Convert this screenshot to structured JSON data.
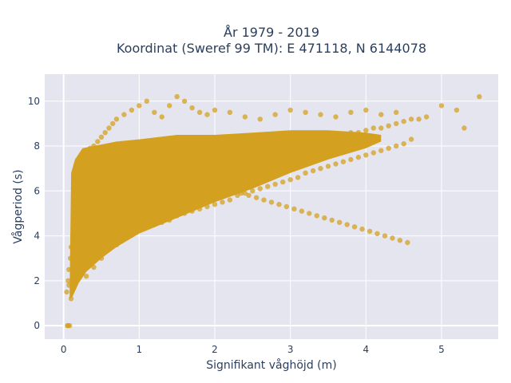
{
  "chart_data": {
    "type": "scatter",
    "title_lines": [
      "År 1979 - 2019",
      "Koordinat (Sweref 99 TM): E 471118, N 6144078"
    ],
    "xlabel": "Signifikant våghöjd (m)",
    "ylabel": "Vågperiod (s)",
    "xlim": [
      -0.25,
      5.75
    ],
    "ylim": [
      -0.6,
      11.2
    ],
    "xticks": [
      0,
      1,
      2,
      3,
      4,
      5
    ],
    "xtick_labels": [
      "0",
      "1",
      "2",
      "3",
      "4",
      "5"
    ],
    "yticks": [
      0,
      2,
      4,
      6,
      8,
      10
    ],
    "ytick_labels": [
      "0",
      "2",
      "4",
      "6",
      "8",
      "10"
    ],
    "grid": true,
    "legend": "none",
    "marker_color": "#D4A020",
    "plot_bgcolor": "#E5E5F0",
    "series": [
      {
        "x": [
          0.05,
          0.06,
          0.08,
          0.1,
          0.07,
          0.12,
          0.04,
          0.15,
          0.18,
          0.2,
          0.22,
          0.25,
          0.28,
          0.3,
          0.32,
          0.35,
          0.38,
          0.4,
          0.42,
          0.45,
          0.48,
          0.5,
          0.52,
          0.55,
          0.58,
          0.6,
          0.62,
          0.65,
          0.68,
          0.7,
          0.72,
          0.75,
          0.78,
          0.8,
          0.82,
          0.85,
          0.88,
          0.9,
          0.92,
          0.95,
          0.98,
          1.0,
          1.05,
          1.1,
          1.15,
          1.2,
          1.25,
          1.3,
          1.35,
          1.4,
          1.45,
          1.5,
          1.55,
          1.6,
          1.65,
          1.7,
          1.75,
          1.8,
          1.85,
          1.9,
          1.95,
          2.0,
          2.1,
          2.2,
          2.3,
          2.4,
          2.5,
          2.6,
          2.7,
          2.8,
          2.9,
          3.0,
          3.1,
          3.2,
          3.3,
          3.4,
          3.5,
          3.6,
          3.7,
          3.8,
          3.9,
          4.0,
          4.1,
          4.2,
          4.3,
          4.4,
          4.5,
          4.6,
          4.7,
          4.8,
          5.0,
          5.2,
          5.3,
          5.5,
          0.06,
          0.07,
          0.09,
          0.1,
          0.12,
          0.14,
          0.16,
          0.18,
          0.2,
          0.24,
          0.28,
          0.32,
          0.36,
          0.4,
          0.45,
          0.5,
          0.55,
          0.6,
          0.65,
          0.7,
          0.8,
          0.9,
          1.0,
          1.1,
          1.2,
          1.3,
          1.4,
          1.5,
          1.6,
          1.7,
          1.8,
          1.9,
          2.0,
          2.2,
          2.4,
          2.6,
          2.8,
          3.0,
          3.2,
          3.4,
          3.6,
          3.8,
          4.0,
          4.2,
          4.4,
          0.3,
          0.4,
          0.5,
          0.6,
          0.7,
          0.8,
          0.9,
          1.0,
          1.1,
          1.2,
          1.3,
          1.4,
          1.5,
          1.6,
          1.7,
          1.8,
          1.9,
          2.0,
          2.1,
          2.2,
          2.3,
          2.4,
          2.5,
          2.6,
          2.7,
          2.8,
          2.9,
          3.0,
          3.1,
          3.2,
          3.3,
          3.4,
          3.5,
          3.6,
          3.7,
          3.8,
          3.9,
          4.0,
          4.1,
          4.2,
          4.3,
          4.4,
          4.5,
          4.6,
          0.35,
          0.45,
          0.55,
          0.65,
          0.75,
          0.85,
          0.95,
          1.05,
          1.15,
          1.25,
          1.35,
          1.45,
          1.55,
          1.65,
          1.75,
          1.85,
          1.95,
          2.05,
          2.15,
          2.25,
          2.35,
          2.45,
          2.55,
          2.65,
          2.75,
          2.85,
          2.95,
          3.05,
          3.15,
          3.25,
          3.35,
          3.45,
          3.55,
          3.65,
          3.75,
          3.85,
          3.95,
          4.05,
          4.15,
          4.25,
          4.35,
          4.45,
          4.55
        ],
        "y": [
          0.0,
          0.0,
          0.0,
          1.2,
          1.8,
          2.2,
          1.5,
          2.6,
          3.0,
          3.2,
          3.6,
          3.8,
          4.0,
          4.2,
          4.5,
          4.6,
          4.8,
          5.0,
          5.1,
          5.2,
          5.4,
          5.5,
          5.6,
          5.7,
          5.8,
          5.9,
          6.0,
          6.0,
          6.1,
          6.2,
          6.2,
          6.3,
          6.4,
          6.4,
          6.5,
          6.5,
          6.6,
          6.6,
          6.7,
          6.7,
          6.8,
          6.8,
          6.9,
          7.0,
          7.0,
          7.1,
          7.1,
          7.2,
          7.2,
          7.3,
          7.3,
          7.4,
          7.4,
          7.5,
          7.5,
          7.5,
          7.6,
          7.6,
          7.6,
          7.7,
          7.7,
          7.8,
          7.8,
          7.9,
          7.9,
          8.0,
          8.0,
          8.0,
          8.1,
          8.1,
          8.2,
          8.2,
          8.2,
          8.3,
          8.3,
          8.4,
          8.4,
          8.5,
          8.5,
          8.6,
          8.6,
          8.7,
          8.8,
          8.8,
          8.9,
          9.0,
          9.1,
          9.2,
          9.2,
          9.3,
          9.8,
          9.6,
          8.8,
          10.2,
          2.0,
          2.5,
          3.0,
          3.5,
          4.0,
          4.5,
          5.0,
          5.5,
          6.0,
          6.5,
          7.0,
          7.5,
          7.8,
          8.0,
          8.2,
          8.4,
          8.6,
          8.8,
          9.0,
          9.2,
          9.4,
          9.6,
          9.8,
          10.0,
          9.5,
          9.3,
          9.8,
          10.2,
          10.0,
          9.7,
          9.5,
          9.4,
          9.6,
          9.5,
          9.3,
          9.2,
          9.4,
          9.6,
          9.5,
          9.4,
          9.3,
          9.5,
          9.6,
          9.4,
          9.5,
          2.2,
          2.6,
          3.0,
          3.4,
          3.6,
          3.9,
          4.1,
          4.3,
          4.4,
          4.5,
          4.6,
          4.7,
          4.9,
          5.0,
          5.1,
          5.2,
          5.3,
          5.4,
          5.5,
          5.6,
          5.8,
          5.9,
          6.0,
          6.1,
          6.2,
          6.3,
          6.4,
          6.5,
          6.6,
          6.8,
          6.9,
          7.0,
          7.1,
          7.2,
          7.3,
          7.4,
          7.5,
          7.6,
          7.7,
          7.8,
          7.9,
          8.0,
          8.1,
          8.3,
          7.9,
          7.8,
          7.7,
          7.6,
          7.5,
          7.4,
          7.3,
          7.2,
          7.1,
          7.0,
          6.9,
          6.8,
          6.7,
          6.6,
          6.5,
          6.4,
          6.3,
          6.2,
          6.1,
          6.0,
          5.9,
          5.8,
          5.7,
          5.6,
          5.5,
          5.4,
          5.3,
          5.2,
          5.1,
          5.0,
          4.9,
          4.8,
          4.7,
          4.6,
          4.5,
          4.4,
          4.3,
          4.2,
          4.1,
          4.0,
          3.9,
          3.8,
          3.7
        ]
      }
    ]
  }
}
